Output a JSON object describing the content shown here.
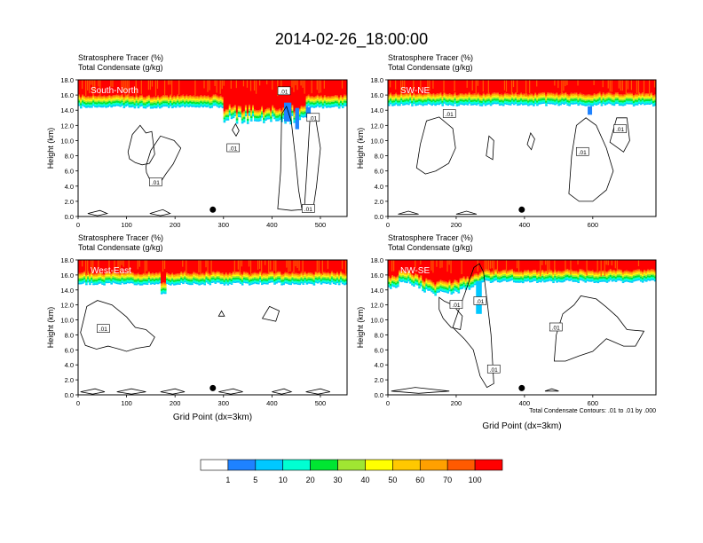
{
  "main_title": "2014-02-26_18:00:00",
  "colorbar": {
    "levels": [
      "1",
      "5",
      "10",
      "20",
      "30",
      "40",
      "50",
      "60",
      "70",
      "100"
    ],
    "colors": [
      "#ffffff",
      "#1e82ff",
      "#00c8ff",
      "#00ffd2",
      "#00e632",
      "#a0e632",
      "#ffff00",
      "#ffc800",
      "#ffa000",
      "#ff5a00",
      "#ff0000"
    ]
  },
  "chart_data": [
    {
      "type": "heatmap",
      "subtitle_line1": "Stratosphere Tracer   (%)",
      "subtitle_line2": "Total Condensate   (g/kg)",
      "cross_section": "South-North",
      "ylabel": "Height (km)",
      "xlabel": "",
      "xlim": [
        0,
        555
      ],
      "ylim": [
        0,
        18
      ],
      "xticks": [
        "0",
        "100",
        "200",
        "300",
        "400",
        "500"
      ],
      "yticks": [
        "0.0",
        "2.0",
        "4.0",
        "6.0",
        "8.0",
        "10.0",
        "12.0",
        "14.0",
        "16.0",
        "18.0"
      ],
      "contour_labels": [
        ".01",
        ".01",
        ".01",
        ".01",
        ".01"
      ],
      "marker_x": 278
    },
    {
      "type": "heatmap",
      "subtitle_line1": "Stratosphere Tracer   (%)",
      "subtitle_line2": "Total Condensate   (g/kg)",
      "cross_section": "SW-NE",
      "ylabel": "Height (km)",
      "xlabel": "",
      "xlim": [
        0,
        785
      ],
      "ylim": [
        0,
        18
      ],
      "xticks": [
        "0",
        "200",
        "400",
        "600"
      ],
      "yticks": [
        "0.0",
        "2.0",
        "4.0",
        "6.0",
        "8.0",
        "10.0",
        "12.0",
        "14.0",
        "16.0",
        "18.0"
      ],
      "contour_labels": [
        ".01",
        ".01",
        ".01"
      ],
      "marker_x": 392
    },
    {
      "type": "heatmap",
      "subtitle_line1": "Stratosphere Tracer   (%)",
      "subtitle_line2": "Total Condensate   (g/kg)",
      "cross_section": "West-East",
      "ylabel": "Height (km)",
      "xlabel": "Grid Point (dx=3km)",
      "xlim": [
        0,
        555
      ],
      "ylim": [
        0,
        18
      ],
      "xticks": [
        "0",
        "100",
        "200",
        "300",
        "400",
        "500"
      ],
      "yticks": [
        "0.0",
        "2.0",
        "4.0",
        "6.0",
        "8.0",
        "10.0",
        "12.0",
        "14.0",
        "16.0",
        "18.0"
      ],
      "contour_labels": [
        ".01"
      ],
      "marker_x": 278
    },
    {
      "type": "heatmap",
      "subtitle_line1": "Stratosphere Tracer   (%)",
      "subtitle_line2": "Total Condensate   (g/kg)",
      "cross_section": "NW-SE",
      "ylabel": "Height (km)",
      "xlabel": "Grid Point (dx=3km)",
      "xlim": [
        0,
        785
      ],
      "ylim": [
        0,
        18
      ],
      "xticks": [
        "0",
        "200",
        "400",
        "600"
      ],
      "yticks": [
        "0.0",
        "2.0",
        "4.0",
        "6.0",
        "8.0",
        "10.0",
        "12.0",
        "14.0",
        "16.0",
        "18.0"
      ],
      "contour_labels": [
        ".01",
        ".01",
        ".01",
        ".01"
      ],
      "marker_x": 392,
      "footnote": "Total Condensate Contours: .01 to .01 by .000"
    }
  ]
}
